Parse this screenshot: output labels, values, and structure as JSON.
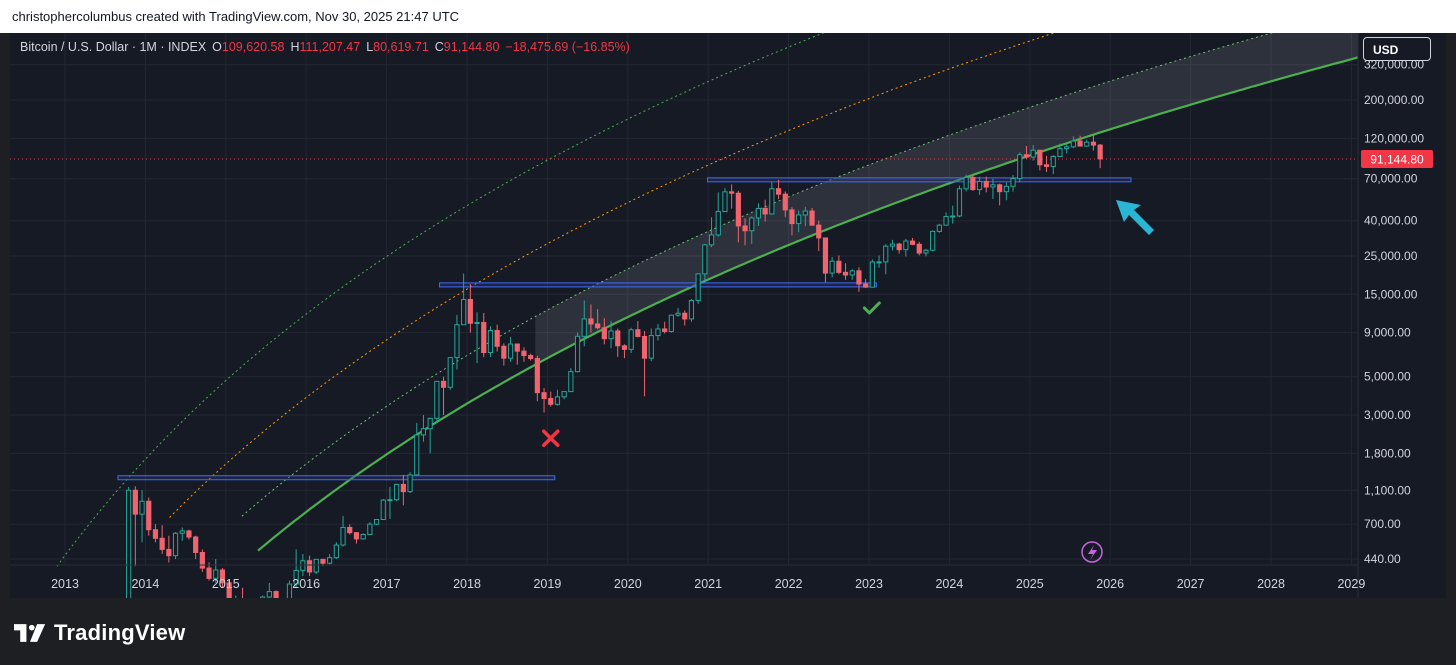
{
  "caption": "christophercolumbus created with TradingView.com, Nov 30, 2025 21:47 UTC",
  "header": {
    "symbol": "Bitcoin / U.S. Dollar · 1M · INDEX",
    "open_label": "O",
    "open": "109,620.58",
    "high_label": "H",
    "high": "111,207.47",
    "low_label": "L",
    "low": "80,619.71",
    "close_label": "C",
    "close": "91,144.80",
    "change": "−18,475.69 (−16.85%)"
  },
  "currency_button": "USD",
  "price_badge": "91,144.80",
  "footer": {
    "brand": "TradingView"
  },
  "colors": {
    "background": "#161a25",
    "up": "#26a69a",
    "down": "#f0646e",
    "green_band": "#4caf50",
    "orange_band": "#ff9800",
    "level_box": "#3d6bff",
    "arrow": "#29b6d4",
    "price_line": "#f23645"
  },
  "chart_data": {
    "type": "candlestick",
    "title": "",
    "y_scale": "log",
    "y_ticks": [
      "320,000.00",
      "200,000.00",
      "120,000.00",
      "70,000.00",
      "40,000.00",
      "25,000.00",
      "15,000.00",
      "9,000.00",
      "5,000.00",
      "3,000.00",
      "1,800.00",
      "1,100.00",
      "700.00",
      "440.00"
    ],
    "x_ticks": [
      "2013",
      "2014",
      "2015",
      "2016",
      "2017",
      "2018",
      "2019",
      "2020",
      "2021",
      "2022",
      "2023",
      "2024",
      "2025",
      "2026",
      "2027",
      "2028",
      "2029"
    ],
    "last_price": 91144.8,
    "bars": [
      [
        "2013-10",
        200,
        1150,
        150,
        1100
      ],
      [
        "2013-11",
        1100,
        1160,
        400,
        800
      ],
      [
        "2013-12",
        800,
        1100,
        550,
        950
      ],
      [
        "2014-01",
        950,
        1000,
        600,
        650
      ],
      [
        "2014-02",
        650,
        700,
        550,
        580
      ],
      [
        "2014-03",
        580,
        690,
        470,
        500
      ],
      [
        "2014-04",
        500,
        600,
        420,
        460
      ],
      [
        "2014-05",
        460,
        630,
        440,
        620
      ],
      [
        "2014-06",
        620,
        670,
        560,
        640
      ],
      [
        "2014-07",
        640,
        650,
        570,
        590
      ],
      [
        "2014-08",
        590,
        600,
        440,
        480
      ],
      [
        "2014-09",
        480,
        500,
        370,
        390
      ],
      [
        "2014-10",
        390,
        420,
        330,
        340
      ],
      [
        "2014-11",
        340,
        440,
        320,
        380
      ],
      [
        "2014-12",
        380,
        390,
        300,
        320
      ],
      [
        "2015-01",
        320,
        330,
        170,
        220
      ],
      [
        "2015-02",
        220,
        270,
        210,
        255
      ],
      [
        "2015-03",
        255,
        300,
        230,
        245
      ],
      [
        "2015-04",
        245,
        260,
        215,
        235
      ],
      [
        "2015-05",
        235,
        245,
        225,
        230
      ],
      [
        "2015-06",
        230,
        270,
        225,
        265
      ],
      [
        "2015-07",
        265,
        320,
        260,
        285
      ],
      [
        "2015-08",
        285,
        290,
        200,
        230
      ],
      [
        "2015-09",
        230,
        240,
        225,
        236
      ],
      [
        "2015-10",
        236,
        330,
        235,
        315
      ],
      [
        "2015-11",
        315,
        500,
        300,
        378
      ],
      [
        "2015-12",
        378,
        470,
        350,
        430
      ],
      [
        "2016-01",
        430,
        460,
        350,
        370
      ],
      [
        "2016-02",
        370,
        440,
        360,
        438
      ],
      [
        "2016-03",
        438,
        440,
        400,
        416
      ],
      [
        "2016-04",
        416,
        470,
        410,
        448
      ],
      [
        "2016-05",
        448,
        550,
        440,
        530
      ],
      [
        "2016-06",
        530,
        780,
        520,
        670
      ],
      [
        "2016-07",
        670,
        700,
        610,
        625
      ],
      [
        "2016-08",
        625,
        630,
        540,
        575
      ],
      [
        "2016-09",
        575,
        620,
        570,
        610
      ],
      [
        "2016-10",
        610,
        720,
        605,
        700
      ],
      [
        "2016-11",
        700,
        750,
        690,
        745
      ],
      [
        "2016-12",
        745,
        980,
        740,
        965
      ],
      [
        "2017-01",
        965,
        1150,
        750,
        970
      ],
      [
        "2017-02",
        970,
        1200,
        950,
        1190
      ],
      [
        "2017-03",
        1190,
        1350,
        900,
        1080
      ],
      [
        "2017-04",
        1080,
        1400,
        1060,
        1350
      ],
      [
        "2017-05",
        1350,
        2700,
        1350,
        2300
      ],
      [
        "2017-06",
        2300,
        3000,
        2100,
        2500
      ],
      [
        "2017-07",
        2500,
        2900,
        1800,
        2870
      ],
      [
        "2017-08",
        2870,
        4700,
        2700,
        4700
      ],
      [
        "2017-09",
        4700,
        5000,
        3000,
        4340
      ],
      [
        "2017-10",
        4340,
        6450,
        4200,
        6450
      ],
      [
        "2017-11",
        6450,
        11400,
        5500,
        10000
      ],
      [
        "2017-12",
        10000,
        19800,
        10000,
        14000
      ],
      [
        "2018-01",
        14000,
        17200,
        9000,
        10200
      ],
      [
        "2018-02",
        10200,
        11800,
        6000,
        10300
      ],
      [
        "2018-03",
        10300,
        11700,
        6500,
        6900
      ],
      [
        "2018-04",
        6900,
        9800,
        6500,
        9250
      ],
      [
        "2018-05",
        9250,
        10000,
        7000,
        7500
      ],
      [
        "2018-06",
        7500,
        7800,
        5800,
        6400
      ],
      [
        "2018-07",
        6400,
        8500,
        6100,
        7730
      ],
      [
        "2018-08",
        7730,
        7770,
        5880,
        7030
      ],
      [
        "2018-09",
        7030,
        7400,
        6100,
        6630
      ],
      [
        "2018-10",
        6630,
        6800,
        6200,
        6370
      ],
      [
        "2018-11",
        6370,
        6600,
        3600,
        4040
      ],
      [
        "2018-12",
        4040,
        4300,
        3100,
        3740
      ],
      [
        "2019-01",
        3740,
        4100,
        3350,
        3460
      ],
      [
        "2019-02",
        3460,
        4200,
        3400,
        3820
      ],
      [
        "2019-03",
        3820,
        4100,
        3700,
        4100
      ],
      [
        "2019-04",
        4100,
        5600,
        4100,
        5350
      ],
      [
        "2019-05",
        5350,
        9000,
        5300,
        8570
      ],
      [
        "2019-06",
        8570,
        13800,
        7500,
        10800
      ],
      [
        "2019-07",
        10800,
        13100,
        9000,
        10100
      ],
      [
        "2019-08",
        10100,
        12300,
        9400,
        9600
      ],
      [
        "2019-09",
        9600,
        10900,
        7700,
        8300
      ],
      [
        "2019-10",
        8300,
        10500,
        7300,
        9200
      ],
      [
        "2019-11",
        9200,
        9500,
        6500,
        7550
      ],
      [
        "2019-12",
        7550,
        7700,
        6400,
        7200
      ],
      [
        "2020-01",
        7200,
        9600,
        6850,
        9350
      ],
      [
        "2020-02",
        9350,
        10500,
        8450,
        8550
      ],
      [
        "2020-03",
        8550,
        9200,
        3850,
        6400
      ],
      [
        "2020-04",
        6400,
        9500,
        6150,
        8650
      ],
      [
        "2020-05",
        8650,
        10100,
        8100,
        9450
      ],
      [
        "2020-06",
        9450,
        10400,
        8900,
        9140
      ],
      [
        "2020-07",
        9140,
        11450,
        9000,
        11350
      ],
      [
        "2020-08",
        11350,
        12500,
        11100,
        11650
      ],
      [
        "2020-09",
        11650,
        12100,
        9900,
        10800
      ],
      [
        "2020-10",
        10800,
        14100,
        10400,
        13800
      ],
      [
        "2020-11",
        13800,
        19900,
        13200,
        19700
      ],
      [
        "2020-12",
        19700,
        29300,
        17600,
        29000
      ],
      [
        "2021-01",
        29000,
        41900,
        28100,
        33100
      ],
      [
        "2021-02",
        33100,
        58300,
        32300,
        45200
      ],
      [
        "2021-03",
        45200,
        61800,
        45000,
        58800
      ],
      [
        "2021-04",
        58800,
        64900,
        47000,
        57700
      ],
      [
        "2021-05",
        57700,
        59600,
        30000,
        37300
      ],
      [
        "2021-06",
        37300,
        41300,
        28800,
        35000
      ],
      [
        "2021-07",
        35000,
        42400,
        29300,
        41500
      ],
      [
        "2021-08",
        41500,
        50500,
        37300,
        47100
      ],
      [
        "2021-09",
        47100,
        52900,
        39600,
        43800
      ],
      [
        "2021-10",
        43800,
        67000,
        43300,
        61300
      ],
      [
        "2021-11",
        61300,
        69000,
        53300,
        57000
      ],
      [
        "2021-12",
        57000,
        59100,
        42000,
        46200
      ],
      [
        "2022-01",
        46200,
        47900,
        32900,
        38500
      ],
      [
        "2022-02",
        38500,
        45800,
        34300,
        43200
      ],
      [
        "2022-03",
        43200,
        48200,
        37200,
        45500
      ],
      [
        "2022-04",
        45500,
        47400,
        37700,
        37700
      ],
      [
        "2022-05",
        37700,
        40000,
        26700,
        31800
      ],
      [
        "2022-06",
        31800,
        31900,
        17600,
        19900
      ],
      [
        "2022-07",
        19900,
        24600,
        18800,
        23300
      ],
      [
        "2022-08",
        23300,
        25200,
        19600,
        20100
      ],
      [
        "2022-09",
        20100,
        22700,
        18200,
        19400
      ],
      [
        "2022-10",
        19400,
        21000,
        18200,
        20500
      ],
      [
        "2022-11",
        20500,
        21500,
        15500,
        17200
      ],
      [
        "2022-12",
        17200,
        18400,
        16300,
        16500
      ],
      [
        "2023-01",
        16500,
        23900,
        16500,
        23100
      ],
      [
        "2023-02",
        23100,
        25200,
        21400,
        23100
      ],
      [
        "2023-03",
        23100,
        29200,
        19600,
        28500
      ],
      [
        "2023-04",
        28500,
        31000,
        26900,
        29300
      ],
      [
        "2023-05",
        29300,
        29800,
        25800,
        27200
      ],
      [
        "2023-06",
        27200,
        31400,
        24800,
        30500
      ],
      [
        "2023-07",
        30500,
        31800,
        28900,
        29200
      ],
      [
        "2023-08",
        29200,
        30200,
        25200,
        26000
      ],
      [
        "2023-09",
        26000,
        27500,
        24900,
        27000
      ],
      [
        "2023-10",
        27000,
        35200,
        26600,
        34700
      ],
      [
        "2023-11",
        34700,
        38400,
        34100,
        37700
      ],
      [
        "2023-12",
        37700,
        44700,
        37600,
        42300
      ],
      [
        "2024-01",
        42300,
        48900,
        38500,
        42600
      ],
      [
        "2024-02",
        42600,
        63900,
        41900,
        61200
      ],
      [
        "2024-03",
        61200,
        73800,
        59100,
        71300
      ],
      [
        "2024-04",
        71300,
        72800,
        59600,
        60600
      ],
      [
        "2024-05",
        60600,
        71900,
        56500,
        67500
      ],
      [
        "2024-06",
        67500,
        72000,
        58400,
        62700
      ],
      [
        "2024-07",
        62700,
        70000,
        53500,
        64600
      ],
      [
        "2024-08",
        64600,
        65600,
        49100,
        58900
      ],
      [
        "2024-09",
        58900,
        66500,
        52500,
        63300
      ],
      [
        "2024-10",
        63300,
        73600,
        58900,
        70200
      ],
      [
        "2024-11",
        70200,
        99600,
        66800,
        96400
      ],
      [
        "2024-12",
        96400,
        108300,
        90500,
        93400
      ],
      [
        "2025-01",
        93400,
        109600,
        89200,
        102400
      ],
      [
        "2025-02",
        102400,
        102600,
        78200,
        84300
      ],
      [
        "2025-03",
        84300,
        95000,
        76600,
        82500
      ],
      [
        "2025-04",
        82500,
        95800,
        74400,
        94200
      ],
      [
        "2025-05",
        94200,
        111900,
        93400,
        104600
      ],
      [
        "2025-06",
        104600,
        110500,
        98200,
        107100
      ],
      [
        "2025-07",
        107100,
        123100,
        105300,
        115700
      ],
      [
        "2025-08",
        115700,
        124400,
        108100,
        108200
      ],
      [
        "2025-09",
        108200,
        117900,
        107300,
        114000
      ],
      [
        "2025-10",
        114000,
        126200,
        102000,
        109620.58
      ],
      [
        "2025-11",
        109620.58,
        111207.47,
        80619.71,
        91144.8
      ]
    ],
    "levels": [
      {
        "from": "2013-09",
        "to": "2019-01",
        "value": 1300
      },
      {
        "from": "2017-09",
        "to": "2023-01",
        "value": 17000
      },
      {
        "from": "2021-01",
        "to": "2026-03",
        "value": 69000
      }
    ],
    "markers": [
      {
        "type": "cross",
        "date": "2019-01",
        "value": 2200
      },
      {
        "type": "check",
        "date": "2023-01",
        "value": 12500
      }
    ]
  }
}
